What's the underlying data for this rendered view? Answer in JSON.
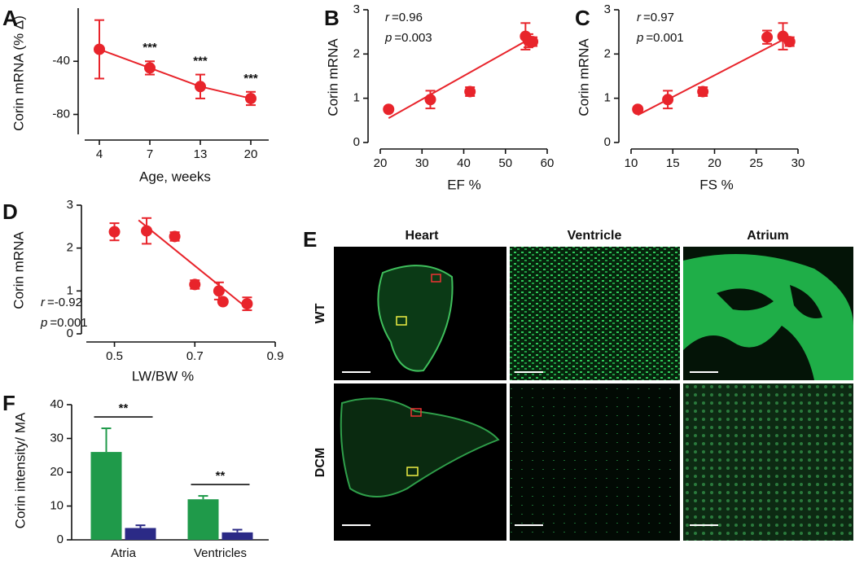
{
  "chart_data": [
    {
      "type": "line",
      "label": "A",
      "ylabel": "Corin mRNA (% Δ)",
      "xlabel": "Age, weeks",
      "categories": [
        "4",
        "7",
        "13",
        "20"
      ],
      "values": [
        -31,
        -45,
        -59,
        -68
      ],
      "errors": [
        22,
        5,
        9,
        5
      ],
      "annotations": [
        null,
        "***",
        "***",
        "***"
      ],
      "color": "#e8242b",
      "ylim": [
        -95,
        0
      ],
      "yticks": [
        -40,
        -80
      ]
    },
    {
      "type": "scatter",
      "label": "B",
      "ylabel": "Corin mRNA",
      "xlabel": "EF %",
      "x": [
        22,
        32,
        41.5,
        54.8,
        55.5,
        56.5
      ],
      "values": [
        0.75,
        0.97,
        1.15,
        2.4,
        2.3,
        2.28
      ],
      "errors": [
        null,
        0.2,
        0.1,
        0.3,
        0.15,
        0.1
      ],
      "fit": {
        "x": [
          22,
          55
        ],
        "y": [
          0.55,
          2.3
        ]
      },
      "stats": [
        {
          "name": "r",
          "text": "=0.96"
        },
        {
          "name": "p",
          "text": "=0.003"
        }
      ],
      "color": "#e8242b",
      "xlim": [
        20,
        60
      ],
      "xticks": [
        20,
        30,
        40,
        50,
        60
      ],
      "ylim": [
        0,
        3
      ],
      "yticks": [
        0,
        1,
        2,
        3
      ]
    },
    {
      "type": "scatter",
      "label": "C",
      "ylabel": "Corin mRNA",
      "xlabel": "FS %",
      "x": [
        10.8,
        14.4,
        18.6,
        26.3,
        28.2,
        29
      ],
      "values": [
        0.75,
        0.97,
        1.15,
        2.38,
        2.4,
        2.28
      ],
      "errors": [
        null,
        0.2,
        0.1,
        0.15,
        0.3,
        0.1
      ],
      "fit": {
        "x": [
          10.8,
          28
        ],
        "y": [
          0.62,
          2.3
        ]
      },
      "stats": [
        {
          "name": "r",
          "text": "=0.97"
        },
        {
          "name": "p",
          "text": "=0.001"
        }
      ],
      "color": "#e8242b",
      "xlim": [
        10,
        30
      ],
      "xticks": [
        10,
        15,
        20,
        25,
        30
      ],
      "ylim": [
        0,
        3
      ],
      "yticks": [
        0,
        1,
        2,
        3
      ]
    },
    {
      "type": "scatter",
      "label": "D",
      "ylabel": "Corin mRNA",
      "xlabel": "LW/BW %",
      "x": [
        0.5,
        0.58,
        0.65,
        0.7,
        0.76,
        0.77,
        0.83
      ],
      "values": [
        2.38,
        2.4,
        2.27,
        1.15,
        1.0,
        0.75,
        0.7
      ],
      "errors": [
        0.2,
        0.3,
        0.1,
        0.1,
        0.2,
        null,
        0.15
      ],
      "fit": {
        "x": [
          0.56,
          0.83
        ],
        "y": [
          2.65,
          0.6
        ]
      },
      "stats": [
        {
          "name": "r",
          "text": "=-0.92"
        },
        {
          "name": "p",
          "text": "=0.001"
        }
      ],
      "color": "#e8242b",
      "xlim": [
        0.43,
        0.9
      ],
      "xticks": [
        0.5,
        0.7,
        0.9
      ],
      "ylim": [
        0,
        3
      ],
      "yticks": [
        0,
        1,
        2,
        3
      ]
    },
    {
      "type": "bar",
      "label": "F",
      "ylabel": "Corin intensity/ MA",
      "categories": [
        "Atria",
        "Ventricles"
      ],
      "series": [
        {
          "color": "#1f9a4a",
          "values": [
            26,
            12
          ],
          "errors": [
            7,
            1
          ]
        },
        {
          "color": "#2b2a86",
          "values": [
            3.5,
            2.2
          ],
          "errors": [
            0.8,
            0.8
          ]
        }
      ],
      "annotations": [
        "**",
        "**"
      ],
      "ylim": [
        0,
        40
      ],
      "yticks": [
        0,
        10,
        20,
        30,
        40
      ]
    }
  ],
  "image_panel": {
    "label": "E",
    "columns": [
      "Heart",
      "Ventricle",
      "Atrium"
    ],
    "rows": [
      "WT",
      "DCM"
    ]
  }
}
